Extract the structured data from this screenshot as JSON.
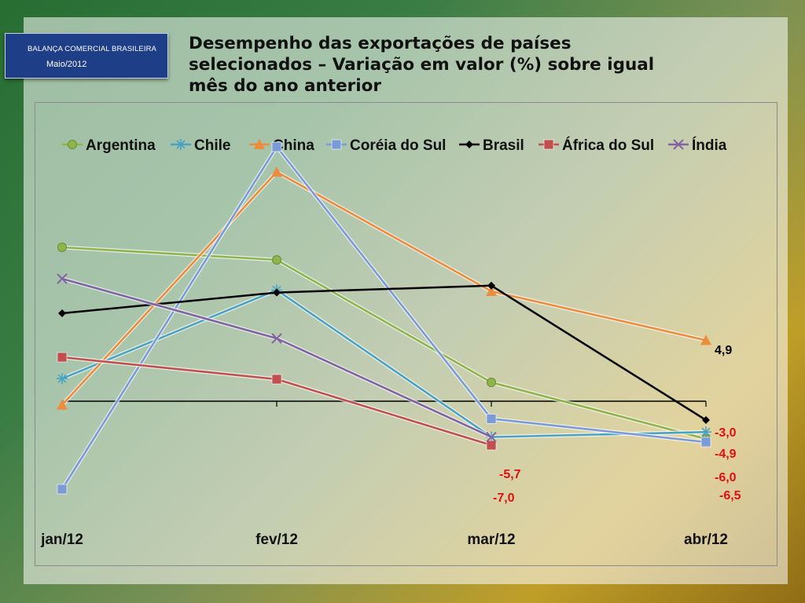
{
  "header": {
    "badge_line1": "BALANÇA COMERCIAL BRASILEIRA",
    "badge_line2": "Maio/2012",
    "title_line1": "Desempenho das exportações de países",
    "title_line2": "selecionados – Variação em valor (%) sobre igual",
    "title_line3": "mês do ano anterior"
  },
  "chart_data": {
    "type": "line",
    "title": "Desempenho das exportações de países selecionados – Variação em valor (%) sobre igual mês do ano anterior",
    "categories": [
      "jan/12",
      "fev/12",
      "mar/12",
      "abr/12"
    ],
    "ylim": [
      -10,
      41
    ],
    "grid": false,
    "legend_position": "top",
    "series": [
      {
        "name": "Argentina",
        "color": "#8db54b",
        "marker": "circle",
        "values": [
          24.5,
          22.5,
          3.0,
          -6.0
        ]
      },
      {
        "name": "Chile",
        "color": "#4aa3c3",
        "marker": "star",
        "values": [
          3.6,
          17.7,
          -5.7,
          -4.9
        ]
      },
      {
        "name": "China",
        "color": "#ec8c3c",
        "marker": "triangle",
        "values": [
          -0.6,
          36.5,
          17.5,
          9.7
        ]
      },
      {
        "name": "Coréia do Sul",
        "color": "#7b9bd8",
        "marker": "square",
        "values": [
          -14.0,
          40.5,
          -2.8,
          -6.5
        ]
      },
      {
        "name": "Brasil",
        "color": "#000000",
        "marker": "diamond",
        "values": [
          14.0,
          17.3,
          18.4,
          -3.0
        ]
      },
      {
        "name": "África do Sul",
        "color": "#c0504d",
        "marker": "square",
        "values": [
          7.0,
          3.5,
          -7.0,
          null
        ]
      },
      {
        "name": "Índia",
        "color": "#8064a2",
        "marker": "x",
        "values": [
          19.5,
          10.0,
          -5.7,
          null
        ]
      }
    ],
    "data_labels": [
      {
        "text": "4,9",
        "color": "#000000"
      },
      {
        "text": "-3,0",
        "color": "#e01010"
      },
      {
        "text": "-4,9",
        "color": "#e01010"
      },
      {
        "text": "-6,0",
        "color": "#e01010"
      },
      {
        "text": "-6,5",
        "color": "#e01010"
      },
      {
        "text": "-5,7",
        "color": "#e01010"
      },
      {
        "text": "-7,0",
        "color": "#e01010"
      }
    ]
  }
}
